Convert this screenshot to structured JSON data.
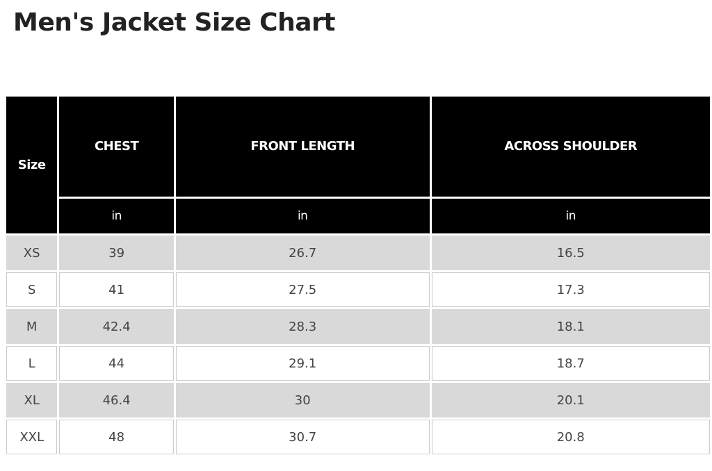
{
  "title": "Men's Jacket Size Chart",
  "table": {
    "headers": [
      "Size",
      "CHEST",
      "FRONT LENGTH",
      "ACROSS SHOULDER"
    ],
    "units": [
      "in",
      "in",
      "in"
    ],
    "rows": [
      [
        "XS",
        "39",
        "26.7",
        "16.5"
      ],
      [
        "S",
        "41",
        "27.5",
        "17.3"
      ],
      [
        "M",
        "42.4",
        "28.3",
        "18.1"
      ],
      [
        "L",
        "44",
        "29.1",
        "18.7"
      ],
      [
        "XL",
        "46.4",
        "30",
        "20.1"
      ],
      [
        "XXL",
        "48",
        "30.7",
        "20.8"
      ]
    ]
  }
}
